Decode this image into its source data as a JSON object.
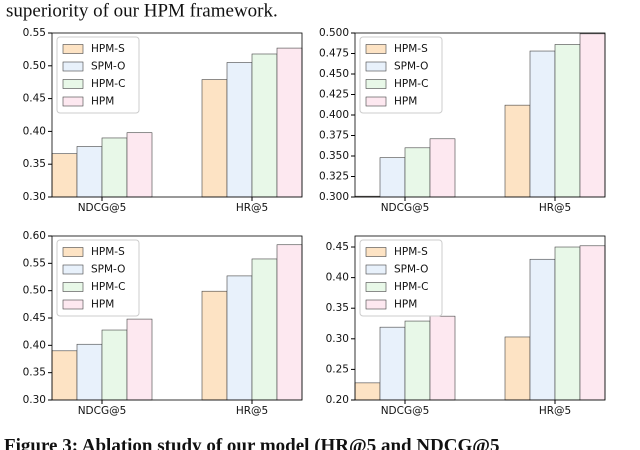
{
  "header_text": "superiority of our HPM framework.",
  "caption": "Figure 3: Ablation study of our model (HR@5 and NDCG@5",
  "chart_data": [
    {
      "type": "bar",
      "categories": [
        "NDCG@5",
        "HR@5"
      ],
      "legend": "upper left",
      "grid": false,
      "ylim": [
        0.3,
        0.55
      ],
      "yticks": [
        {
          "value": 0.3,
          "label": "0.30"
        },
        {
          "value": 0.35,
          "label": "0.35"
        },
        {
          "value": 0.4,
          "label": "0.40"
        },
        {
          "value": 0.45,
          "label": "0.45"
        },
        {
          "value": 0.5,
          "label": "0.50"
        },
        {
          "value": 0.55,
          "label": "0.55"
        }
      ],
      "series": [
        {
          "name": "HPM-S",
          "color": "#fde3c4",
          "values": [
            0.366,
            0.479
          ]
        },
        {
          "name": "SPM-O",
          "color": "#e8f1fb",
          "values": [
            0.377,
            0.505
          ]
        },
        {
          "name": "HPM-C",
          "color": "#e8f8e8",
          "values": [
            0.39,
            0.518
          ]
        },
        {
          "name": "HPM",
          "color": "#fde8f0",
          "values": [
            0.398,
            0.527
          ]
        }
      ]
    },
    {
      "type": "bar",
      "categories": [
        "NDCG@5",
        "HR@5"
      ],
      "legend": "upper left",
      "grid": false,
      "ylim": [
        0.3,
        0.5
      ],
      "yticks": [
        {
          "value": 0.3,
          "label": "0.300"
        },
        {
          "value": 0.325,
          "label": "0.325"
        },
        {
          "value": 0.35,
          "label": "0.350"
        },
        {
          "value": 0.375,
          "label": "0.375"
        },
        {
          "value": 0.4,
          "label": "0.400"
        },
        {
          "value": 0.425,
          "label": "0.425"
        },
        {
          "value": 0.45,
          "label": "0.450"
        },
        {
          "value": 0.475,
          "label": "0.475"
        },
        {
          "value": 0.5,
          "label": "0.500"
        }
      ],
      "series": [
        {
          "name": "HPM-S",
          "color": "#fde3c4",
          "values": [
            0.301,
            0.412
          ]
        },
        {
          "name": "SPM-O",
          "color": "#e8f1fb",
          "values": [
            0.348,
            0.478
          ]
        },
        {
          "name": "HPM-C",
          "color": "#e8f8e8",
          "values": [
            0.36,
            0.486
          ]
        },
        {
          "name": "HPM",
          "color": "#fde8f0",
          "values": [
            0.371,
            0.499
          ]
        }
      ]
    },
    {
      "type": "bar",
      "categories": [
        "NDCG@5",
        "HR@5"
      ],
      "legend": "upper left",
      "grid": false,
      "ylim": [
        0.3,
        0.6
      ],
      "yticks": [
        {
          "value": 0.3,
          "label": "0.30"
        },
        {
          "value": 0.35,
          "label": "0.35"
        },
        {
          "value": 0.4,
          "label": "0.40"
        },
        {
          "value": 0.45,
          "label": "0.45"
        },
        {
          "value": 0.5,
          "label": "0.50"
        },
        {
          "value": 0.55,
          "label": "0.55"
        },
        {
          "value": 0.6,
          "label": "0.60"
        }
      ],
      "series": [
        {
          "name": "HPM-S",
          "color": "#fde3c4",
          "values": [
            0.39,
            0.499
          ]
        },
        {
          "name": "SPM-O",
          "color": "#e8f1fb",
          "values": [
            0.402,
            0.527
          ]
        },
        {
          "name": "HPM-C",
          "color": "#e8f8e8",
          "values": [
            0.428,
            0.558
          ]
        },
        {
          "name": "HPM",
          "color": "#fde8f0",
          "values": [
            0.448,
            0.584
          ]
        }
      ]
    },
    {
      "type": "bar",
      "categories": [
        "NDCG@5",
        "HR@5"
      ],
      "legend": "upper left",
      "grid": false,
      "ylim": [
        0.2,
        0.468
      ],
      "yticks": [
        {
          "value": 0.2,
          "label": "0.20"
        },
        {
          "value": 0.25,
          "label": "0.25"
        },
        {
          "value": 0.3,
          "label": "0.30"
        },
        {
          "value": 0.35,
          "label": "0.35"
        },
        {
          "value": 0.4,
          "label": "0.40"
        },
        {
          "value": 0.45,
          "label": "0.45"
        }
      ],
      "series": [
        {
          "name": "HPM-S",
          "color": "#fde3c4",
          "values": [
            0.228,
            0.303
          ]
        },
        {
          "name": "SPM-O",
          "color": "#e8f1fb",
          "values": [
            0.319,
            0.43
          ]
        },
        {
          "name": "HPM-C",
          "color": "#e8f8e8",
          "values": [
            0.329,
            0.45
          ]
        },
        {
          "name": "HPM",
          "color": "#fde8f0",
          "values": [
            0.337,
            0.452
          ]
        }
      ]
    }
  ]
}
